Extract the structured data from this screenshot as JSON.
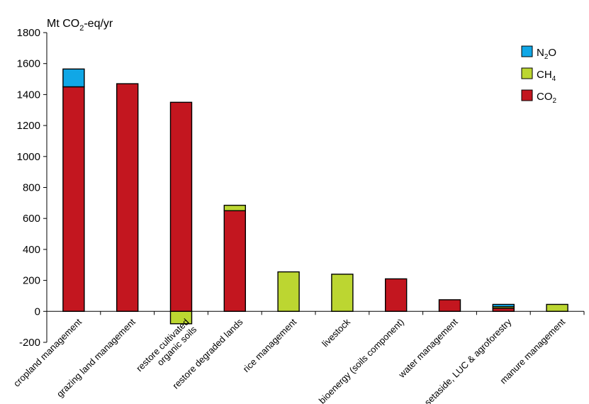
{
  "chart_data": {
    "type": "bar",
    "stacked": true,
    "ylabel": "Mt CO2-eq/yr",
    "ylabel_parts": {
      "pre": "Mt CO",
      "sub": "2",
      "post": "-eq/yr"
    },
    "ylim": [
      -200,
      1800
    ],
    "yticks": [
      "-200",
      "0",
      "200",
      "400",
      "600",
      "800",
      "1000",
      "1200",
      "1400",
      "1600",
      "1800"
    ],
    "ytick_values": [
      -200,
      0,
      200,
      400,
      600,
      800,
      1000,
      1200,
      1400,
      1600,
      1800
    ],
    "grid": false,
    "legend_position": "top-right",
    "categories": [
      "cropland management",
      "grazing land management",
      "restore cultivated organic soils",
      "restore degraded lands",
      "rice management",
      "livestock",
      "bioenergy (soils component)",
      "water management",
      "setaside, LUC & agroforestry",
      "manure management"
    ],
    "category_lines": [
      [
        "cropland management"
      ],
      [
        "grazing land management"
      ],
      [
        "restore cultivated",
        "organic soils"
      ],
      [
        "restore degraded lands"
      ],
      [
        "rice management"
      ],
      [
        "livestock"
      ],
      [
        "bioenergy (soils component)"
      ],
      [
        "water management"
      ],
      [
        "setaside, LUC & agroforestry"
      ],
      [
        "manure management"
      ]
    ],
    "series": [
      {
        "name": "CO2",
        "label_main": "CO",
        "label_sub": "2",
        "color": "#c3161f",
        "values": [
          1450,
          1470,
          1350,
          650,
          0,
          0,
          210,
          75,
          20,
          0
        ]
      },
      {
        "name": "CH4",
        "label_main": "CH",
        "label_sub": "4",
        "color": "#bcd631",
        "values": [
          0,
          0,
          -80,
          35,
          255,
          240,
          0,
          0,
          10,
          45
        ]
      },
      {
        "name": "N2O",
        "label_main": "N",
        "label_sub": "2",
        "label_post": "O",
        "color": "#10a7e6",
        "values": [
          115,
          0,
          0,
          0,
          0,
          0,
          0,
          0,
          15,
          0
        ]
      }
    ],
    "legend_order": [
      "N2O",
      "CH4",
      "CO2"
    ]
  }
}
